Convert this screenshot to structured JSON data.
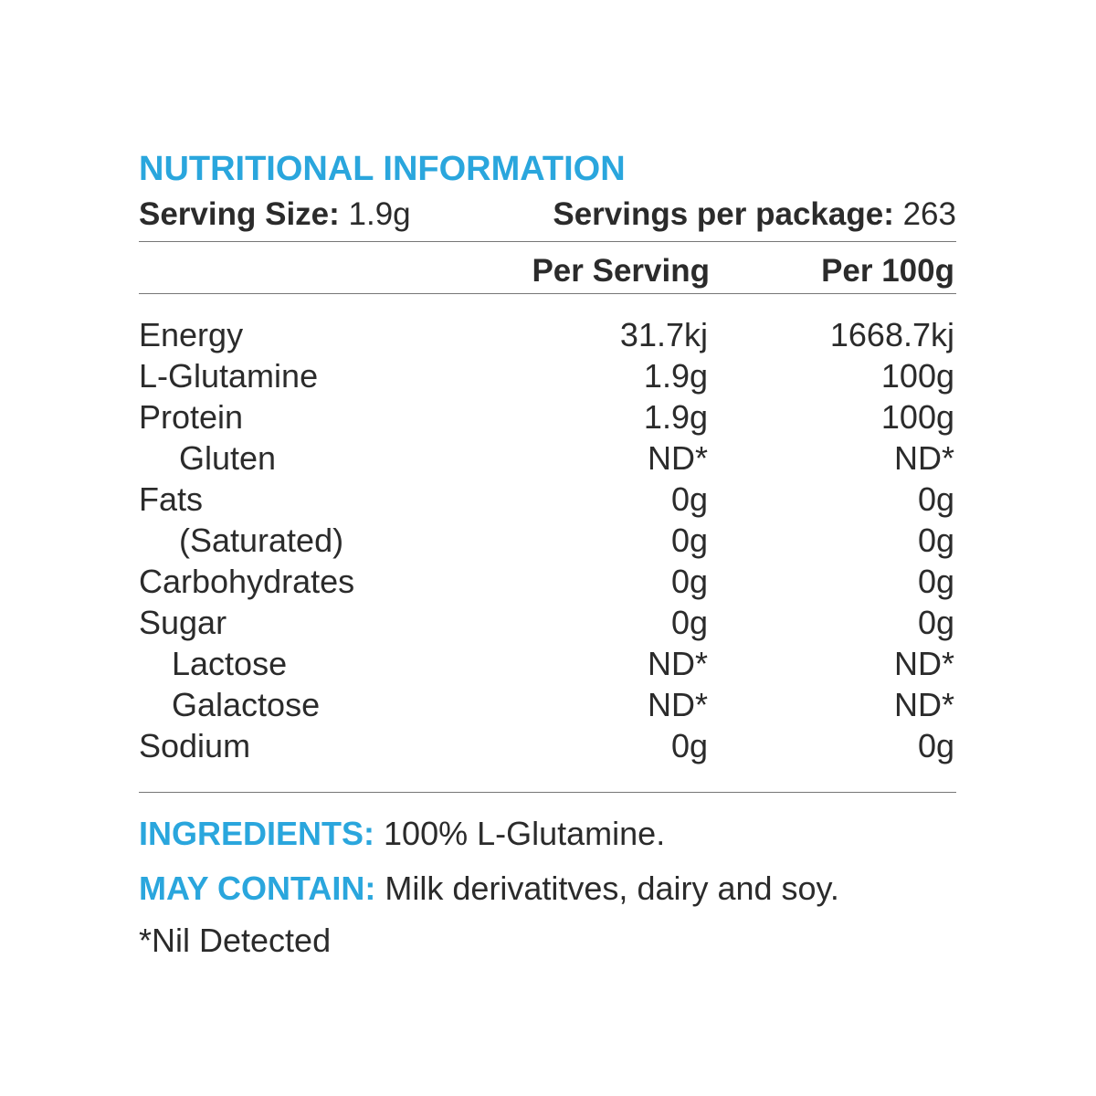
{
  "title": "NUTRITIONAL INFORMATION",
  "serving": {
    "size_label": "Serving Size:",
    "size_value": "1.9g",
    "per_package_label": "Servings per package:",
    "per_package_value": "263"
  },
  "columns": {
    "per_serving": "Per Serving",
    "per_100g": "Per 100g"
  },
  "rows": [
    {
      "name": "Energy",
      "per_serving": "31.7kj",
      "per_100g": "1668.7kj"
    },
    {
      "name": "L-Glutamine",
      "per_serving": "1.9g",
      "per_100g": "100g"
    },
    {
      "name": "Protein",
      "per_serving": "1.9g",
      "per_100g": "100g"
    },
    {
      "name": "Gluten",
      "per_serving": "ND*",
      "per_100g": "ND*"
    },
    {
      "name": "Fats",
      "per_serving": "0g",
      "per_100g": "0g"
    },
    {
      "name": "(Saturated)",
      "per_serving": "0g",
      "per_100g": "0g"
    },
    {
      "name": "Carbohydrates",
      "per_serving": "0g",
      "per_100g": "0g"
    },
    {
      "name": "Sugar",
      "per_serving": "0g",
      "per_100g": "0g"
    },
    {
      "name": "Lactose",
      "per_serving": "ND*",
      "per_100g": "ND*"
    },
    {
      "name": "Galactose",
      "per_serving": "ND*",
      "per_100g": "ND*"
    },
    {
      "name": "Sodium",
      "per_serving": "0g",
      "per_100g": "0g"
    }
  ],
  "ingredients": {
    "label": "INGREDIENTS:",
    "value": "100% L-Glutamine."
  },
  "may_contain": {
    "label": "MAY CONTAIN:",
    "value": "Milk derivatitves, dairy and soy."
  },
  "footnote": "*Nil Detected",
  "colors": {
    "accent": "#2aa6dd",
    "text": "#2b2b2b"
  }
}
